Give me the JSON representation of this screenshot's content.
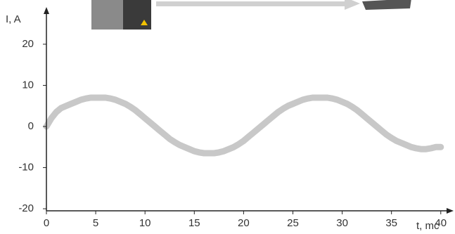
{
  "chart_data": {
    "type": "line",
    "y_label": "I, A",
    "x_label": "t, mc",
    "x": [
      0,
      0.5,
      1,
      1.5,
      2,
      2.5,
      3,
      3.5,
      4,
      4.5,
      5,
      5.5,
      6,
      6.5,
      7,
      7.5,
      8,
      8.5,
      9,
      9.5,
      10,
      10.5,
      11,
      11.5,
      12,
      12.5,
      13,
      13.5,
      14,
      14.5,
      15,
      15.5,
      16,
      16.5,
      17,
      17.5,
      18,
      18.5,
      19,
      19.5,
      20,
      20.5,
      21,
      21.5,
      22,
      22.5,
      23,
      23.5,
      24,
      24.5,
      25,
      25.5,
      26,
      26.5,
      27,
      27.5,
      28,
      28.5,
      29,
      29.5,
      30,
      30.5,
      31,
      31.5,
      32,
      32.5,
      33,
      33.5,
      34,
      34.5,
      35,
      35.5,
      36,
      36.5,
      37,
      37.5,
      38,
      38.5,
      39,
      39.5,
      40
    ],
    "values": [
      0,
      2,
      3.5,
      4.5,
      5,
      5.5,
      6,
      6.5,
      6.8,
      7,
      7,
      7,
      7,
      6.8,
      6.5,
      6,
      5.5,
      4.8,
      4,
      3,
      2,
      1,
      0,
      -1,
      -2,
      -3,
      -3.8,
      -4.5,
      -5,
      -5.5,
      -6,
      -6.3,
      -6.5,
      -6.5,
      -6.5,
      -6.3,
      -6,
      -5.5,
      -5,
      -4.3,
      -3.5,
      -2.5,
      -1.5,
      -0.5,
      0.5,
      1.5,
      2.5,
      3.5,
      4.3,
      5,
      5.5,
      6,
      6.5,
      6.8,
      7,
      7,
      7,
      7,
      6.8,
      6.5,
      6,
      5.5,
      4.8,
      4,
      3,
      2,
      1,
      0,
      -1,
      -2,
      -2.8,
      -3.5,
      -4,
      -4.5,
      -5,
      -5.3,
      -5.5,
      -5.5,
      -5.3,
      -5,
      -5
    ],
    "color": "#c8c8c8",
    "xlim": [
      0,
      41.3
    ],
    "ylim": [
      -20.5,
      28.7
    ],
    "xticks": [
      0,
      5,
      10,
      15,
      20,
      25,
      30,
      35,
      40
    ],
    "yticks": [
      -20,
      -10,
      0,
      10,
      20
    ]
  }
}
